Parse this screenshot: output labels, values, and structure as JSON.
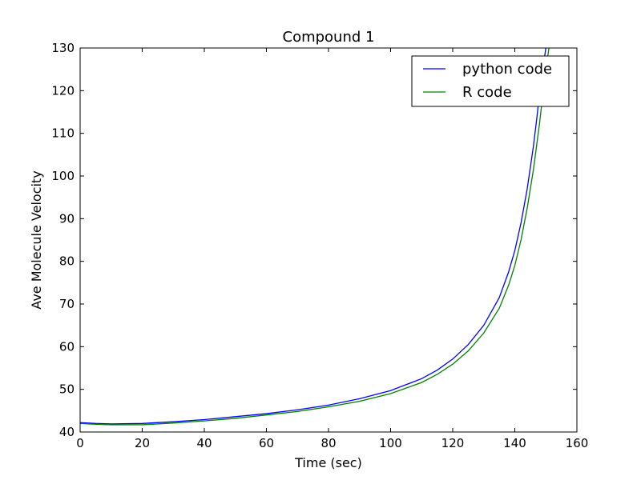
{
  "chart_data": {
    "type": "line",
    "title": "Compound 1",
    "xlabel": "Time (sec)",
    "ylabel": "Ave Molecule Velocity",
    "xlim": [
      0,
      160
    ],
    "ylim": [
      40,
      130
    ],
    "xticks": [
      0,
      20,
      40,
      60,
      80,
      100,
      120,
      140,
      160
    ],
    "yticks": [
      40,
      50,
      60,
      70,
      80,
      90,
      100,
      110,
      120,
      130
    ],
    "grid": false,
    "legend_position": "top-right",
    "series": [
      {
        "name": "python code",
        "color": "#0000ff",
        "x": [
          0,
          5,
          10,
          20,
          30,
          40,
          50,
          60,
          70,
          80,
          90,
          100,
          110,
          115,
          120,
          125,
          130,
          135,
          138,
          140,
          142,
          144,
          146,
          147,
          148,
          149,
          150
        ],
        "y": [
          42.2,
          42.0,
          41.9,
          42.0,
          42.4,
          42.9,
          43.6,
          44.3,
          45.2,
          46.3,
          47.8,
          49.7,
          52.5,
          54.5,
          57.1,
          60.5,
          65.0,
          71.5,
          77.5,
          82.5,
          89.0,
          97.0,
          107.0,
          113.0,
          119.5,
          125.0,
          130.0
        ]
      },
      {
        "name": "R code",
        "color": "#008000",
        "x": [
          0,
          5,
          10,
          20,
          30,
          40,
          50,
          60,
          70,
          80,
          90,
          100,
          110,
          115,
          120,
          125,
          130,
          135,
          138,
          140,
          142,
          144,
          146,
          148,
          149,
          150,
          151
        ],
        "y": [
          42.0,
          41.8,
          41.7,
          41.7,
          42.1,
          42.6,
          43.2,
          44.0,
          44.8,
          45.9,
          47.2,
          49.0,
          51.6,
          53.5,
          55.9,
          59.0,
          63.2,
          69.0,
          74.4,
          79.0,
          85.0,
          92.5,
          101.5,
          112.5,
          119.0,
          125.0,
          130.0
        ]
      }
    ]
  }
}
